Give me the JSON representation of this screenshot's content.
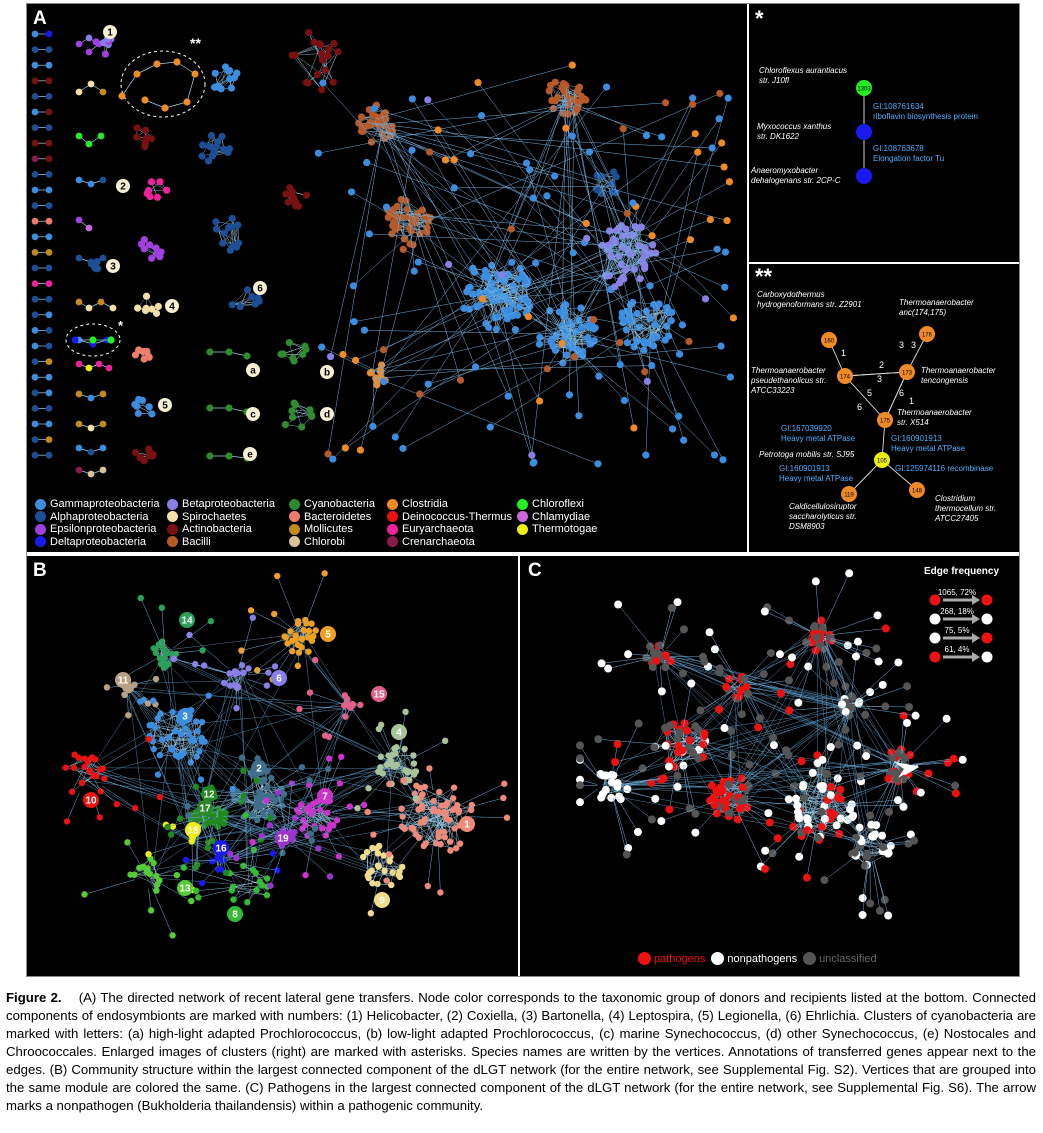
{
  "panels": {
    "a_label": "A",
    "b_label": "B",
    "c_label": "C",
    "star_label": "*",
    "star2_label": "**",
    "a_star_marker": "*",
    "a_star2_marker": "**"
  },
  "cluster_numbers": [
    "1",
    "2",
    "3",
    "4",
    "5",
    "6"
  ],
  "cluster_letters": [
    "a",
    "b",
    "c",
    "d",
    "e"
  ],
  "legend": [
    {
      "label": "Gammaproteobacteria",
      "color": "#3b8de0"
    },
    {
      "label": "Betaproteobacteria",
      "color": "#8a7fe6"
    },
    {
      "label": "Cyanobacteria",
      "color": "#2e8b2e"
    },
    {
      "label": "Clostridia",
      "color": "#f08a24"
    },
    {
      "label": "Chloroflexi",
      "color": "#22ee22"
    },
    {
      "label": "Alphaproteobacteria",
      "color": "#1c4f96"
    },
    {
      "label": "Spirochaetes",
      "color": "#f2dfa8"
    },
    {
      "label": "Bacteroidetes",
      "color": "#ef7c6a"
    },
    {
      "label": "Deinococcus-Thermus",
      "color": "#ee1111"
    },
    {
      "label": "Chlamydiae",
      "color": "#cc66dd"
    },
    {
      "label": "Epsilonproteobacteria",
      "color": "#a040e0"
    },
    {
      "label": "Actinobacteria",
      "color": "#7a1010"
    },
    {
      "label": "Mollicutes",
      "color": "#c48a1c"
    },
    {
      "label": "Euryarchaeota",
      "color": "#ee2299"
    },
    {
      "label": "Thermotogae",
      "color": "#eeee11"
    },
    {
      "label": "Deltaproteobacteria",
      "color": "#1a1aee"
    },
    {
      "label": "Bacilli",
      "color": "#b85a28"
    },
    {
      "label": "Chlorobi",
      "color": "#d8c49a"
    },
    {
      "label": "Crenarchaeota",
      "color": "#8a1a4a"
    }
  ],
  "inset_star": {
    "species": [
      {
        "name": "Chloroflexus aurantiacus",
        "strain": "str. J10fl",
        "node": "1303",
        "color": "#22ee22"
      },
      {
        "name": "Myxococcus xanthus",
        "strain": "str. DK1622",
        "node": "",
        "color": "#1a1aee"
      },
      {
        "name": "Anaeromyxobacter",
        "strain": "dehalogenans str. 2CP-C",
        "node": "",
        "color": "#1a1aee"
      }
    ],
    "genes": [
      {
        "gi": "GI:108761634",
        "desc": "riboflavin biosynthesis protein"
      },
      {
        "gi": "GI:108763678",
        "desc": "Elongation factor Tu"
      }
    ]
  },
  "inset_star2": {
    "species": [
      {
        "line1": "Carboxydothermus",
        "line2": "hydrogenoformans str. Z2901"
      },
      {
        "line1": "Thermoanaerobacter",
        "line2": "anc(174,175)"
      },
      {
        "line1": "Thermoanaerobacter",
        "line2": "pseudethanolicus str.",
        "line3": "ATCC33223"
      },
      {
        "line1": "Thermoanaerobacter",
        "line2": "tencongensis"
      },
      {
        "line1": "Thermoanaerobacter",
        "line2": "str. X514"
      },
      {
        "line1": "Petrotoga mobilis str. SJ95"
      },
      {
        "line1": "Caldicellulosiruptor",
        "line2": "saccharolyticus str.",
        "line3": "DSM8903"
      },
      {
        "line1": "Clostridium",
        "line2": "thermocellum str.",
        "line3": "ATCC27405"
      }
    ],
    "nodes": [
      "160",
      "176",
      "174",
      "173",
      "175",
      "105",
      "119",
      "148"
    ],
    "edge_numbers": [
      "1",
      "2",
      "3",
      "3",
      "3",
      "5",
      "6",
      "1",
      "6"
    ],
    "genes": [
      {
        "gi": "GI:167039920",
        "desc": "Heavy metal ATPase"
      },
      {
        "gi": "GI:160901913",
        "desc": "Heavy metal ATPase"
      },
      {
        "gi": "GI:160901913",
        "desc": "Heavy metal ATPase"
      },
      {
        "gi": "GI:125974116",
        "desc": "recombinase"
      }
    ]
  },
  "panel_b_modules": [
    "1",
    "2",
    "3",
    "4",
    "5",
    "6",
    "7",
    "8",
    "9",
    "10",
    "11",
    "12",
    "13",
    "14",
    "15",
    "16",
    "17",
    "18",
    "19"
  ],
  "panel_c": {
    "edge_frequency_title": "Edge frequency",
    "rows": [
      {
        "label": "1065, 72%",
        "from": "#ee1111",
        "to": "#ee1111"
      },
      {
        "label": "268, 18%",
        "from": "#ffffff",
        "to": "#ffffff"
      },
      {
        "label": "75, 5%",
        "from": "#ffffff",
        "to": "#ee1111"
      },
      {
        "label": "61, 4%",
        "from": "#ee1111",
        "to": "#ffffff"
      }
    ],
    "legend": [
      {
        "label": "pathogens",
        "color": "#ee1111"
      },
      {
        "label": "nonpathogens",
        "color": "#ffffff"
      },
      {
        "label": "unclassified",
        "color": "#555555"
      }
    ]
  },
  "caption": {
    "fig": "Figure 2.",
    "text": "(A) The directed network of recent lateral gene transfers. Node color corresponds to the taxonomic group of donors and recipients listed at the bottom. Connected components of endosymbionts are marked with numbers: (1) Helicobacter, (2) Coxiella, (3) Bartonella, (4) Leptospira, (5) Legionella, (6) Ehrlichia. Clusters of cyanobacteria are marked with letters: (a) high-light adapted Prochlorococcus, (b) low-light adapted Prochlorococcus, (c) marine Synechococcus, (d) other Synechococcus, (e) Nostocales and Chroococcales. Enlarged images of clusters (right) are marked with asterisks. Species names are written by the vertices. Annotations of transferred genes appear next to the edges. (B) Community structure within the largest connected component of the dLGT network (for the entire network, see Supplemental Fig. S2). Vertices that are grouped into the same module are colored the same. (C) Pathogens in the largest connected component of the dLGT network (for the entire network, see Supplemental Fig. S6). The arrow marks a nonpathogen (Bukholderia thailandensis) within a pathogenic community."
  }
}
